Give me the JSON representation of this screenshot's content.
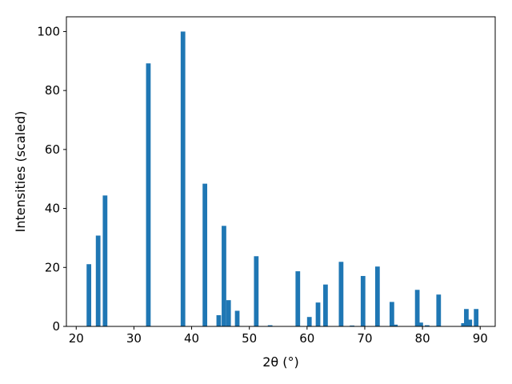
{
  "chart_data": {
    "type": "bar",
    "title": "",
    "xlabel": "2θ (°)",
    "ylabel": "Intensities (scaled)",
    "xlim": [
      18.3,
      92.6
    ],
    "ylim": [
      0,
      105
    ],
    "xticks": [
      20,
      30,
      40,
      50,
      60,
      70,
      80,
      90
    ],
    "yticks": [
      0,
      20,
      40,
      60,
      80,
      100
    ],
    "grid": false,
    "legend": "none",
    "bar_color": "#1f77b4",
    "bar_width": 0.8,
    "x": [
      22.2,
      23.8,
      25.0,
      32.5,
      38.5,
      42.3,
      44.7,
      45.6,
      46.4,
      47.9,
      51.2,
      53.6,
      58.4,
      60.4,
      61.9,
      63.2,
      65.9,
      67.8,
      69.7,
      72.2,
      74.7,
      75.3,
      79.1,
      79.7,
      80.8,
      82.8,
      87.1,
      87.6,
      88.2,
      89.3
    ],
    "values": [
      21.1,
      30.8,
      44.4,
      89.2,
      100.0,
      48.4,
      3.8,
      34.1,
      8.9,
      5.3,
      23.8,
      0.4,
      18.7,
      3.2,
      8.1,
      14.2,
      21.9,
      0.3,
      17.1,
      20.3,
      8.3,
      0.6,
      12.4,
      1.3,
      0.4,
      10.8,
      1.1,
      5.9,
      2.3,
      5.9
    ]
  }
}
